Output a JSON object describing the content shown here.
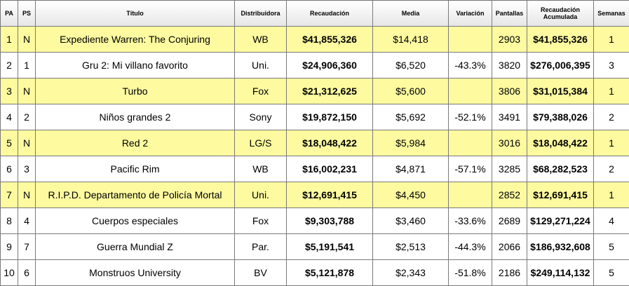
{
  "headers": {
    "pa": "PA",
    "ps": "PS",
    "title": "Título",
    "distributor": "Distribuidora",
    "gross": "Recaudación",
    "average": "Media",
    "change": "Variación",
    "screens": "Pantallas",
    "total_line1": "Recaudación",
    "total_line2": "Acumulada",
    "weeks": "Semanas"
  },
  "highlight_color": "#fdfaa0",
  "rows": [
    {
      "pa": "1",
      "ps": "N",
      "title": "Expediente Warren: The Conjuring",
      "distributor": "WB",
      "gross": "$41,855,326",
      "average": "$14,418",
      "change": "",
      "screens": "2903",
      "total": "$41,855,326",
      "weeks": "1",
      "highlight": true
    },
    {
      "pa": "2",
      "ps": "1",
      "title": "Gru 2: Mi villano favorito",
      "distributor": "Uni.",
      "gross": "$24,906,360",
      "average": "$6,520",
      "change": "-43.3%",
      "screens": "3820",
      "total": "$276,006,395",
      "weeks": "3",
      "highlight": false
    },
    {
      "pa": "3",
      "ps": "N",
      "title": "Turbo",
      "distributor": "Fox",
      "gross": "$21,312,625",
      "average": "$5,600",
      "change": "",
      "screens": "3806",
      "total": "$31,015,384",
      "weeks": "1",
      "highlight": true
    },
    {
      "pa": "4",
      "ps": "2",
      "title": "Niños grandes 2",
      "distributor": "Sony",
      "gross": "$19,872,150",
      "average": "$5,692",
      "change": "-52.1%",
      "screens": "3491",
      "total": "$79,388,026",
      "weeks": "2",
      "highlight": false
    },
    {
      "pa": "5",
      "ps": "N",
      "title": "Red 2",
      "distributor": "LG/S",
      "gross": "$18,048,422",
      "average": "$5,984",
      "change": "",
      "screens": "3016",
      "total": "$18,048,422",
      "weeks": "1",
      "highlight": true
    },
    {
      "pa": "6",
      "ps": "3",
      "title": "Pacific Rim",
      "distributor": "WB",
      "gross": "$16,002,231",
      "average": "$4,871",
      "change": "-57.1%",
      "screens": "3285",
      "total": "$68,282,523",
      "weeks": "2",
      "highlight": false
    },
    {
      "pa": "7",
      "ps": "N",
      "title": "R.I.P.D. Departamento de Policía Mortal",
      "distributor": "Uni.",
      "gross": "$12,691,415",
      "average": "$4,450",
      "change": "",
      "screens": "2852",
      "total": "$12,691,415",
      "weeks": "1",
      "highlight": true
    },
    {
      "pa": "8",
      "ps": "4",
      "title": "Cuerpos especiales",
      "distributor": "Fox",
      "gross": "$9,303,788",
      "average": "$3,460",
      "change": "-33.6%",
      "screens": "2689",
      "total": "$129,271,224",
      "weeks": "4",
      "highlight": false
    },
    {
      "pa": "9",
      "ps": "7",
      "title": "Guerra Mundial Z",
      "distributor": "Par.",
      "gross": "$5,191,541",
      "average": "$2,513",
      "change": "-44.3%",
      "screens": "2066",
      "total": "$186,932,608",
      "weeks": "5",
      "highlight": false
    },
    {
      "pa": "10",
      "ps": "6",
      "title": "Monstruos University",
      "distributor": "BV",
      "gross": "$5,121,878",
      "average": "$2,343",
      "change": "-51.8%",
      "screens": "2186",
      "total": "$249,114,132",
      "weeks": "5",
      "highlight": false
    }
  ]
}
